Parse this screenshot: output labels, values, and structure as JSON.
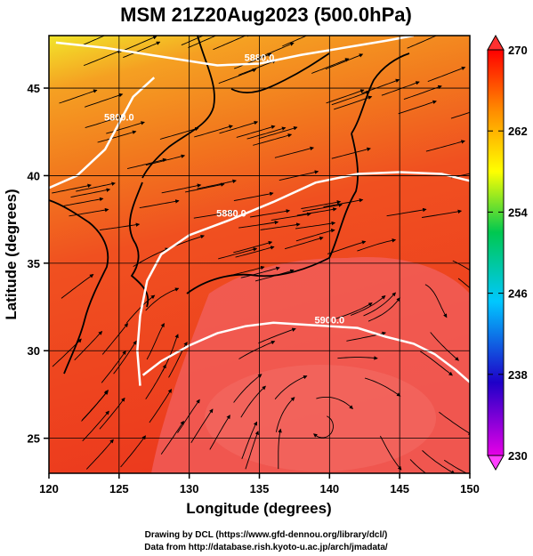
{
  "chart_data": {
    "type": "heatmap",
    "title": "MSM 21Z20Aug2023 (500.0hPa)",
    "xlabel": "Longitude (degrees)",
    "ylabel": "Latitude  (degrees)",
    "xlim": [
      120,
      150
    ],
    "ylim": [
      23,
      48
    ],
    "x_ticks": [
      120,
      125,
      130,
      135,
      140,
      145,
      150
    ],
    "y_ticks": [
      25,
      30,
      35,
      40,
      45
    ],
    "grid": true,
    "colorbar": {
      "range": [
        230,
        270
      ],
      "ticks": [
        230,
        238,
        246,
        254,
        262,
        270
      ],
      "colors": [
        "#e600e6",
        "#1400c8",
        "#00c8ff",
        "#00c850",
        "#ffff00",
        "#ff8c00",
        "#ff0000"
      ]
    },
    "contours": [
      {
        "label": "5880.0",
        "points": [
          [
            120.5,
            47.6
          ],
          [
            124,
            47.3
          ],
          [
            128,
            46.8
          ],
          [
            132,
            46.3
          ],
          [
            135,
            46.4
          ],
          [
            138,
            46.9
          ],
          [
            141,
            47.3
          ],
          [
            144,
            47.7
          ],
          [
            146,
            48
          ]
        ]
      },
      {
        "label": "5800.0",
        "points": [
          [
            120,
            39.3
          ],
          [
            122,
            40
          ],
          [
            124,
            41.5
          ],
          [
            125,
            43
          ],
          [
            126,
            44.5
          ],
          [
            127.5,
            45.6
          ]
        ]
      },
      {
        "label": "5880.0",
        "points": [
          [
            126.5,
            28
          ],
          [
            126.3,
            30
          ],
          [
            126.5,
            32
          ],
          [
            127,
            34
          ],
          [
            128,
            35.5
          ],
          [
            130,
            36.6
          ],
          [
            133,
            37.5
          ],
          [
            136,
            38.5
          ],
          [
            139,
            39.6
          ],
          [
            142,
            40.1
          ],
          [
            145,
            40.2
          ],
          [
            148,
            40.1
          ],
          [
            150,
            39.7
          ]
        ]
      },
      {
        "label": "5900.0",
        "points": [
          [
            126.7,
            28.6
          ],
          [
            128,
            29.4
          ],
          [
            130,
            30.3
          ],
          [
            132,
            31
          ],
          [
            134,
            31.4
          ],
          [
            136,
            31.6
          ],
          [
            138,
            31.5
          ],
          [
            140,
            31.4
          ],
          [
            142,
            31.3
          ],
          [
            144,
            30.8
          ],
          [
            146,
            30.4
          ],
          [
            147.5,
            29.8
          ],
          [
            149,
            28.9
          ],
          [
            150,
            28.2
          ]
        ]
      }
    ]
  },
  "footer": {
    "line1": "Drawing by DCL (https://www.gfd-dennou.org/library/dcl/)",
    "line2": "Data from http://database.rish.kyoto-u.ac.jp/arch/jmadata/"
  }
}
